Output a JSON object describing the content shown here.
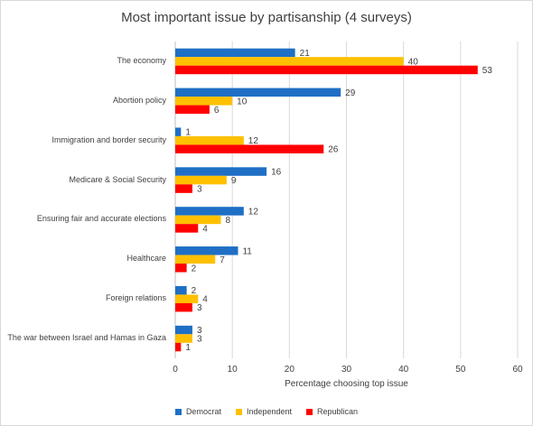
{
  "chart_data": {
    "type": "bar",
    "orientation": "horizontal",
    "title": "Most important issue by partisanship (4 surveys)",
    "xlabel": "Percentage choosing top issue",
    "ylabel": "",
    "xlim": [
      0,
      60
    ],
    "xticks": [
      "0",
      "10",
      "20",
      "30",
      "40",
      "50",
      "60"
    ],
    "grid": "vertical gridlines",
    "legend_position": "bottom",
    "categories": [
      "The economy",
      "Abortion policy",
      "Immigration and border security",
      "Medicare & Social Security",
      "Ensuring fair and accurate elections",
      "Healthcare",
      "Foreign relations",
      "The war between Israel and Hamas in Gaza"
    ],
    "series": [
      {
        "name": "Democrat",
        "color": "#1f6fc5",
        "values": [
          21,
          29,
          1,
          16,
          12,
          11,
          2,
          3
        ]
      },
      {
        "name": "Independent",
        "color": "#ffc000",
        "values": [
          40,
          10,
          12,
          9,
          8,
          7,
          4,
          3
        ]
      },
      {
        "name": "Republican",
        "color": "#ff0000",
        "values": [
          53,
          6,
          26,
          3,
          4,
          2,
          3,
          1
        ]
      }
    ]
  }
}
